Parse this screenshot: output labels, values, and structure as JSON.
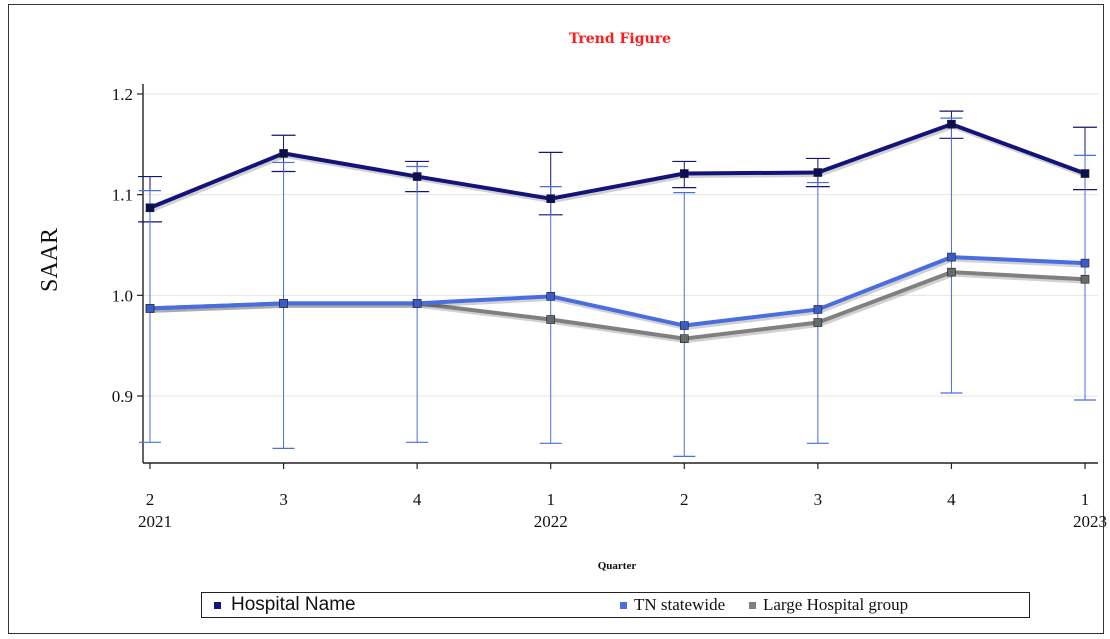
{
  "chart_data": {
    "type": "line",
    "title": "Trend Figure",
    "xlabel": "Quarter",
    "ylabel": "SAAR",
    "categories": [
      "2",
      "3",
      "4",
      "1",
      "2",
      "3",
      "4",
      "1"
    ],
    "years": [
      "2021",
      "",
      "",
      "2022",
      "",
      "",
      "",
      "2023"
    ],
    "yticks": [
      "0.9",
      "1.0",
      "1.1",
      "1.2"
    ],
    "ylim": [
      0.84,
      1.21
    ],
    "grid": "horizontal",
    "legend_position": "bottom",
    "series": [
      {
        "name": "Hospital Name",
        "color": "#12147a",
        "values": [
          1.087,
          1.141,
          1.118,
          1.096,
          1.121,
          1.122,
          1.17,
          1.121
        ],
        "ci_low": [
          1.073,
          1.123,
          1.103,
          1.08,
          1.107,
          1.108,
          1.156,
          1.105
        ],
        "ci_high": [
          1.118,
          1.159,
          1.133,
          1.142,
          1.133,
          1.136,
          1.183,
          1.167
        ]
      },
      {
        "name": "TN statewide",
        "color": "#4a6ee0",
        "values": [
          0.987,
          0.992,
          0.992,
          0.999,
          0.97,
          0.986,
          1.038,
          1.032
        ],
        "ci_low": [
          0.854,
          0.848,
          0.854,
          0.853,
          0.834,
          0.853,
          0.903,
          0.896
        ],
        "ci_high": [
          1.104,
          1.132,
          1.128,
          1.108,
          1.102,
          1.112,
          1.176,
          1.139
        ]
      },
      {
        "name": "Large Hospital group",
        "color": "#808080",
        "values": [
          0.987,
          0.992,
          0.992,
          0.976,
          0.957,
          0.973,
          1.023,
          1.016
        ]
      }
    ]
  },
  "legend": {
    "hospital": "Hospital Name",
    "statewide": "TN statewide",
    "large": "Large Hospital group"
  }
}
